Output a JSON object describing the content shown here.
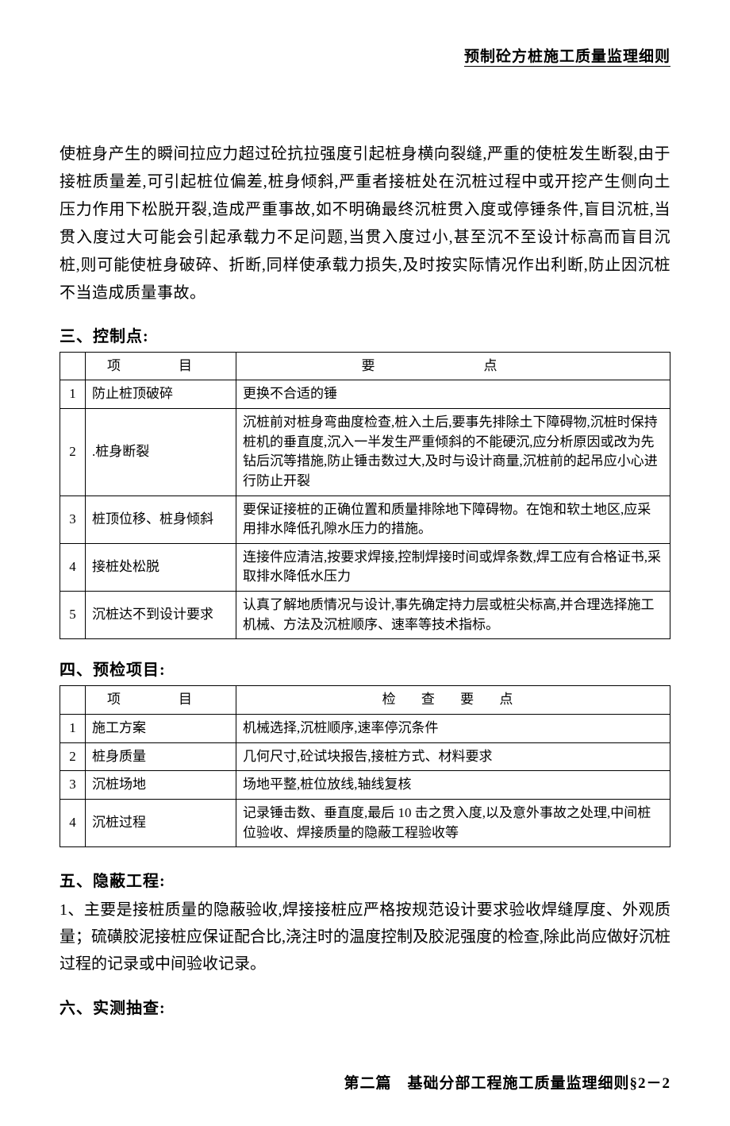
{
  "header": {
    "title": "预制砼方桩施工质量监理细则"
  },
  "paragraph1": "使桩身产生的瞬间拉应力超过砼抗拉强度引起桩身横向裂缝,严重的使桩发生断裂,由于接桩质量差,可引起桩位偏差,桩身倾斜,严重者接桩处在沉桩过程中或开挖产生侧向土压力作用下松脱开裂,造成严重事故,如不明确最终沉桩贯入度或停锤条件,盲目沉桩,当贯入度过大可能会引起承载力不足问题,当贯入度过小,甚至沉不至设计标高而盲目沉桩,则可能使桩身破碎、折断,同样使承载力损失,及时按实际情况作出利断,防止因沉桩不当造成质量事故。",
  "section3": {
    "heading": "三、控制点:",
    "headers": {
      "col1": "项　目",
      "col2": "要　点"
    },
    "rows": [
      {
        "n": "1",
        "item": "防止桩顶破碎",
        "point": "更换不合适的锤"
      },
      {
        "n": "2",
        "item": ".桩身断裂",
        "point": "沉桩前对桩身弯曲度检查,桩入土后,要事先排除土下障碍物,沉桩时保持桩机的垂直度,沉入一半发生严重倾斜的不能硬沉,应分析原因或改为先钻后沉等措施,防止锤击数过大,及时与设计商量,沉桩前的起吊应小心进行防止开裂"
      },
      {
        "n": "3",
        "item": "桩顶位移、桩身倾斜",
        "point": "要保证接桩的正确位置和质量排除地下障碍物。在饱和软土地区,应采用排水降低孔隙水压力的措施。"
      },
      {
        "n": "4",
        "item": "接桩处松脱",
        "point": "连接件应清洁,按要求焊接,控制焊接时间或焊条数,焊工应有合格证书,采取排水降低水压力"
      },
      {
        "n": "5",
        "item": "沉桩达不到设计要求",
        "point": "认真了解地质情况与设计,事先确定持力层或桩尖标高,并合理选择施工机械、方法及沉桩顺序、速率等技术指标。"
      }
    ]
  },
  "section4": {
    "heading": "四、预检项目:",
    "headers": {
      "col1": "项　目",
      "col2": "检 查 要 点"
    },
    "rows": [
      {
        "n": "1",
        "item": "施工方案",
        "point": "机械选择,沉桩顺序,速率停沉条件"
      },
      {
        "n": "2",
        "item": "桩身质量",
        "point": "几何尺寸,砼试块报告,接桩方式、材料要求"
      },
      {
        "n": "3",
        "item": "沉桩场地",
        "point": "场地平整,桩位放线,轴线复核"
      },
      {
        "n": "4",
        "item": "沉桩过程",
        "point": "记录锤击数、垂直度,最后 10 击之贯入度,以及意外事故之处理,中间桩位验收、焊接质量的隐蔽工程验收等"
      }
    ]
  },
  "section5": {
    "heading": "五、隐蔽工程:",
    "body": "1、主要是接桩质量的隐蔽验收,焊接接桩应严格按规范设计要求验收焊缝厚度、外观质量；硫磺胶泥接桩应保证配合比,浇注时的温度控制及胶泥强度的检查,除此尚应做好沉桩过程的记录或中间验收记录。"
  },
  "section6": {
    "heading": "六、实测抽查:"
  },
  "footer": {
    "text": "第二篇　基础分部工程施工质量监理细则§2－2"
  }
}
